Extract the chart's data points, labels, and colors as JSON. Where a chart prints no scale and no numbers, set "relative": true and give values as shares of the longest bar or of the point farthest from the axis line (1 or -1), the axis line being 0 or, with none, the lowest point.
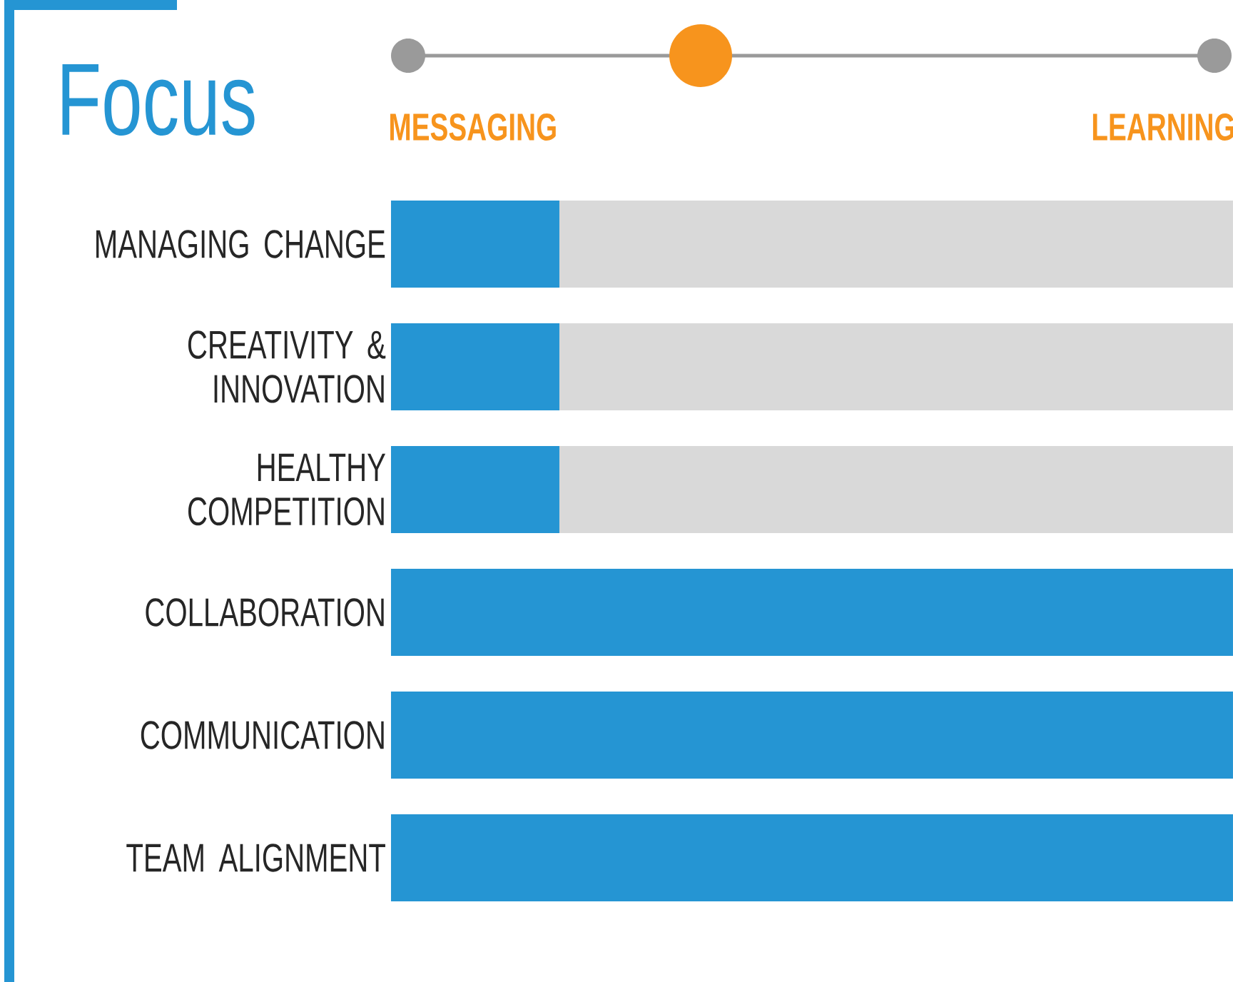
{
  "chart_data": {
    "type": "bar",
    "orientation": "horizontal",
    "stacked": true,
    "relative": true,
    "title": "Focus",
    "categories": [
      "MANAGING CHANGE",
      "CREATIVITY & INNOVATION",
      "HEALTHY COMPETITION",
      "COLLABORATION",
      "COMMUNICATION",
      "TEAM ALIGNMENT"
    ],
    "series": [
      {
        "color": "#2595d3",
        "values": [
          0.2,
          0.2,
          0.2,
          1,
          1,
          1
        ]
      },
      {
        "color": "#d9d9d9",
        "values": [
          0.8,
          0.8,
          0.8,
          0,
          0,
          0
        ]
      }
    ],
    "annotations": [
      "MESSAGING",
      "LEARNING"
    ]
  }
}
